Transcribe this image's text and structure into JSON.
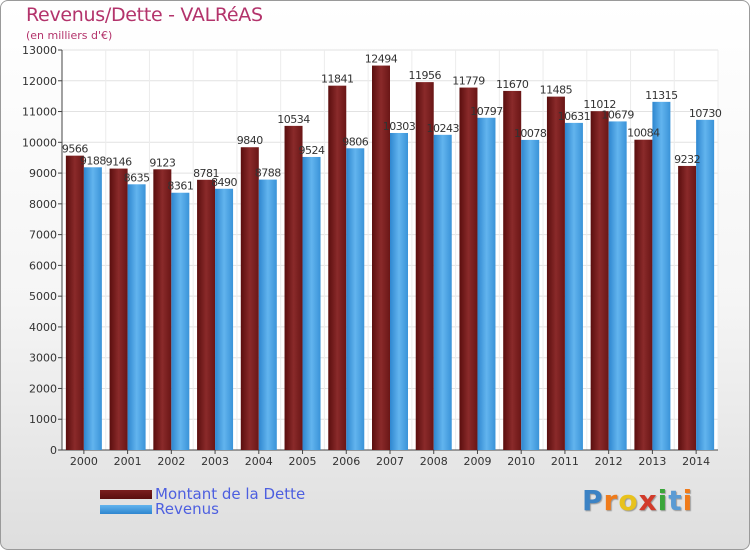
{
  "header": {
    "title": "Revenus/Dette - VALRéAS",
    "subtitle": "(en milliers d'€)"
  },
  "legend": {
    "debt_label": "Montant de la Dette",
    "revenue_label": "Revenus"
  },
  "logo": {
    "letters": [
      "P",
      "r",
      "o",
      "x",
      "i",
      "t",
      "i"
    ],
    "colors": [
      "#3b82c4",
      "#f07b1a",
      "#e8c21c",
      "#d23a2a",
      "#3aa63a",
      "#5a9bd4",
      "#f07b1a"
    ]
  },
  "chart_data": {
    "type": "bar",
    "title": "Revenus/Dette - VALRéAS",
    "subtitle": "(en milliers d'€)",
    "xlabel": "",
    "ylabel": "",
    "ylim": [
      0,
      13000
    ],
    "yticks": [
      0,
      1000,
      2000,
      3000,
      4000,
      5000,
      6000,
      7000,
      8000,
      9000,
      10000,
      11000,
      12000,
      13000
    ],
    "grid": true,
    "legend_position": "bottom-left",
    "categories": [
      "2000",
      "2001",
      "2002",
      "2003",
      "2004",
      "2005",
      "2006",
      "2007",
      "2008",
      "2009",
      "2010",
      "2011",
      "2012",
      "2013",
      "2014"
    ],
    "series": [
      {
        "name": "Montant de la Dette",
        "color": "#7a1f1f",
        "values": [
          9566,
          9146,
          9123,
          8781,
          9840,
          10534,
          11841,
          12494,
          11956,
          11779,
          11670,
          11485,
          11012,
          10084,
          9232
        ],
        "labels": [
          "9566",
          "9146",
          "9123",
          "8781",
          "9840",
          "10534",
          "11841",
          "12494",
          "11956",
          "11779",
          "11670",
          "11485",
          "11012",
          "10084",
          "9232"
        ]
      },
      {
        "name": "Revenus",
        "color": "#4ea3e3",
        "values": [
          9188,
          8635,
          8361,
          8490,
          8788,
          9524,
          9806,
          10303,
          10243,
          10797,
          10078,
          10631,
          10679,
          11315,
          10730
        ],
        "labels": [
          "9188",
          "8635",
          "8361",
          "8490",
          "8788",
          "9524",
          "9806",
          "10303",
          "10243",
          "10797",
          "10078",
          "10631",
          "10679",
          "11315",
          "10730"
        ]
      }
    ]
  }
}
